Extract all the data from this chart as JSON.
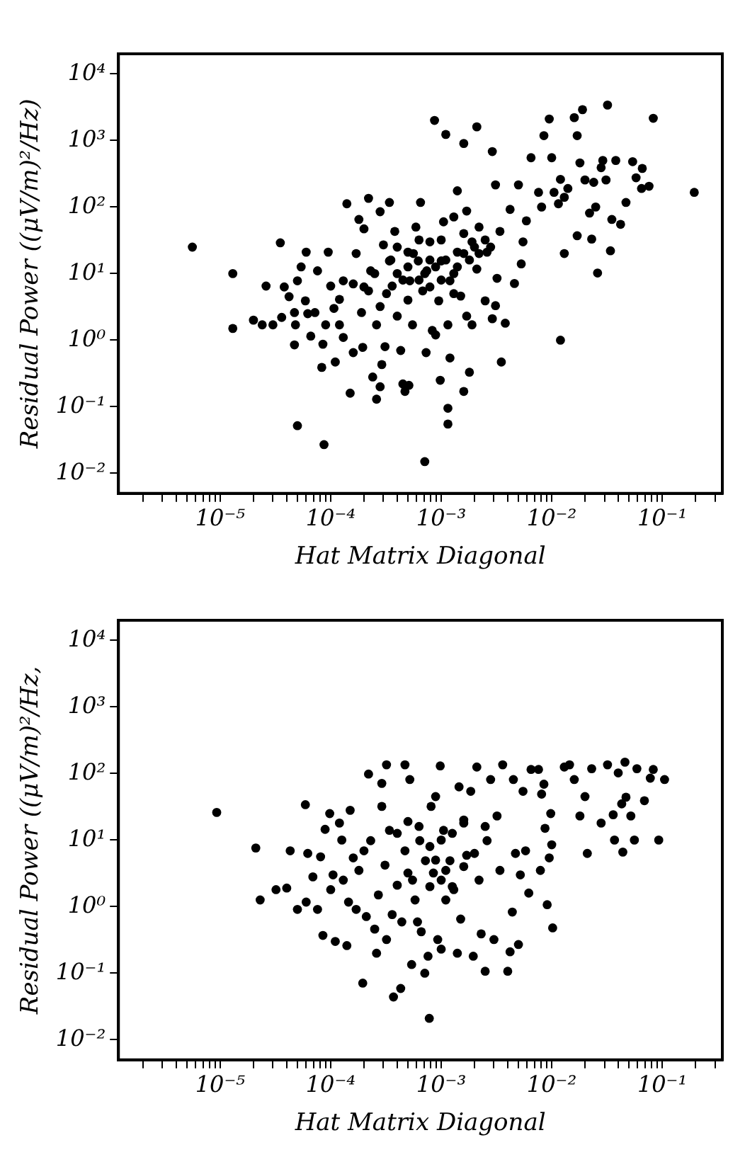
{
  "chart_data": [
    {
      "type": "scatter",
      "xlabel": "Hat Matrix Diagonal",
      "ylabel": "Residual Power ((μV/m)²/Hz)",
      "log": "xy",
      "grid": false,
      "legend": false,
      "marker": "circle",
      "xlim": [
        1.2e-06,
        0.35
      ],
      "ylim": [
        0.005,
        20000
      ],
      "xticks": [
        {
          "value": 2e-06,
          "label": null
        },
        {
          "value": 3e-06,
          "label": null
        },
        {
          "value": 4e-06,
          "label": null
        },
        {
          "value": 5e-06,
          "label": null
        },
        {
          "value": 6e-06,
          "label": null
        },
        {
          "value": 7e-06,
          "label": null
        },
        {
          "value": 8e-06,
          "label": null
        },
        {
          "value": 9e-06,
          "label": null
        },
        {
          "value": 1e-05,
          "label": "10⁻⁵"
        },
        {
          "value": 2e-05,
          "label": null
        },
        {
          "value": 3e-05,
          "label": null
        },
        {
          "value": 4e-05,
          "label": null
        },
        {
          "value": 5e-05,
          "label": null
        },
        {
          "value": 6e-05,
          "label": null
        },
        {
          "value": 7e-05,
          "label": null
        },
        {
          "value": 8e-05,
          "label": null
        },
        {
          "value": 9e-05,
          "label": null
        },
        {
          "value": 0.0001,
          "label": "10⁻⁴"
        },
        {
          "value": 0.0002,
          "label": null
        },
        {
          "value": 0.0003,
          "label": null
        },
        {
          "value": 0.0004,
          "label": null
        },
        {
          "value": 0.0005,
          "label": null
        },
        {
          "value": 0.0006,
          "label": null
        },
        {
          "value": 0.0007,
          "label": null
        },
        {
          "value": 0.0008,
          "label": null
        },
        {
          "value": 0.0009,
          "label": null
        },
        {
          "value": 0.001,
          "label": "10⁻³"
        },
        {
          "value": 0.002,
          "label": null
        },
        {
          "value": 0.003,
          "label": null
        },
        {
          "value": 0.004,
          "label": null
        },
        {
          "value": 0.005,
          "label": null
        },
        {
          "value": 0.006,
          "label": null
        },
        {
          "value": 0.007,
          "label": null
        },
        {
          "value": 0.008,
          "label": null
        },
        {
          "value": 0.009,
          "label": null
        },
        {
          "value": 0.01,
          "label": "10⁻²"
        },
        {
          "value": 0.02,
          "label": null
        },
        {
          "value": 0.03,
          "label": null
        },
        {
          "value": 0.04,
          "label": null
        },
        {
          "value": 0.05,
          "label": null
        },
        {
          "value": 0.06,
          "label": null
        },
        {
          "value": 0.07,
          "label": null
        },
        {
          "value": 0.08,
          "label": null
        },
        {
          "value": 0.09,
          "label": null
        },
        {
          "value": 0.1,
          "label": "10⁻¹"
        },
        {
          "value": 0.2,
          "label": null
        },
        {
          "value": 0.3,
          "label": null
        }
      ],
      "yticks": [
        {
          "value": 0.01,
          "label": "10⁻²"
        },
        {
          "value": 0.1,
          "label": "10⁻¹"
        },
        {
          "value": 1,
          "label": "10⁰"
        },
        {
          "value": 10,
          "label": "10¹"
        },
        {
          "value": 100,
          "label": "10²"
        },
        {
          "value": 1000,
          "label": "10³"
        },
        {
          "value": 10000,
          "label": "10⁴"
        }
      ],
      "series": [
        {
          "color": "#000000",
          "x": [
            5.6e-06,
            1.3e-05,
            1.3e-05,
            2e-05,
            2.4e-05,
            2.6e-05,
            3e-05,
            3.5e-05,
            3.6e-05,
            3.8e-05,
            4.2e-05,
            4.7e-05,
            4.8e-05,
            4.7e-05,
            5e-05,
            5e-05,
            5.4e-05,
            6e-05,
            5.9e-05,
            6.2e-05,
            6.6e-05,
            7.2e-05,
            7.6e-05,
            8.3e-05,
            8.7e-05,
            8.5e-05,
            9e-05,
            9.5e-05,
            0.0001,
            0.000107,
            0.00011,
            0.00012,
            0.00012,
            0.00013,
            0.00014,
            0.00013,
            0.00015,
            0.00016,
            0.00016,
            0.00017,
            0.00018,
            0.00019,
            0.000195,
            0.0002,
            0.00022,
            0.00022,
            0.00023,
            0.00024,
            0.00026,
            0.00026,
            0.00028,
            0.00028,
            0.00029,
            0.0003,
            0.00031,
            0.00034,
            0.00034,
            0.00036,
            0.00038,
            0.0004,
            0.00043,
            0.00045,
            0.00047,
            0.0005,
            0.00051,
            0.00052,
            0.00055,
            0.00059,
            0.00062,
            0.00065,
            0.00068,
            0.00071,
            0.00073,
            0.00074,
            0.00079,
            0.00083,
            0.00087,
            0.00089,
            0.00095,
            0.00098,
            0.001,
            0.00105,
            0.0011,
            0.00115,
            0.00115,
            0.00115,
            0.0012,
            0.0012,
            0.0013,
            0.0014,
            0.0014,
            0.0015,
            0.0016,
            0.0016,
            0.0017,
            0.0017,
            0.0018,
            0.0019,
            0.0019,
            0.0021,
            0.0021,
            0.0022,
            0.0025,
            0.0026,
            0.0029,
            0.0029,
            0.0031,
            0.0031,
            0.0032,
            0.0034,
            0.0035,
            0.0038,
            0.0042,
            0.0046,
            0.005,
            0.0053,
            0.0055,
            0.0059,
            0.0065,
            0.0076,
            0.0081,
            0.0085,
            0.0095,
            0.01,
            0.0105,
            0.0115,
            0.012,
            0.012,
            0.013,
            0.013,
            0.014,
            0.016,
            0.017,
            0.017,
            0.018,
            0.019,
            0.02,
            0.022,
            0.023,
            0.024,
            0.025,
            0.026,
            0.028,
            0.029,
            0.031,
            0.032,
            0.034,
            0.035,
            0.038,
            0.042,
            0.047,
            0.054,
            0.058,
            0.065,
            0.066,
            0.076,
            0.083,
            0.195,
            0.00035,
            0.0004,
            0.00045,
            0.0005,
            0.00056,
            0.00063,
            0.00071,
            0.00079,
            0.00089,
            0.001,
            0.0011,
            0.0013,
            0.0014,
            0.0016,
            0.0018,
            0.002,
            0.0022,
            0.0025,
            0.0028,
            0.00032,
            0.0005,
            0.00079,
            0.0013,
            0.00063,
            0.001,
            0.0016,
            0.0004,
            0.00025,
            0.0002,
            0.00028
          ],
          "values": [
            25,
            10,
            1.5,
            2,
            1.7,
            6.5,
            1.7,
            29,
            2.2,
            6.3,
            4.5,
            2.6,
            1.7,
            0.85,
            0.052,
            7.8,
            12.6,
            21,
            3.9,
            2.5,
            1.15,
            2.6,
            11,
            0.39,
            0.027,
            0.87,
            1.7,
            21,
            6.5,
            3,
            0.47,
            1.7,
            4.1,
            7.8,
            112,
            1.1,
            0.16,
            0.65,
            7,
            20,
            65,
            2.6,
            0.78,
            47,
            135,
            5.5,
            11,
            0.28,
            0.13,
            1.7,
            85,
            0.2,
            0.43,
            27,
            0.8,
            117,
            15.5,
            6.5,
            43,
            2.3,
            0.7,
            0.22,
            0.17,
            21,
            0.21,
            7.8,
            1.7,
            50,
            15.5,
            117,
            5.5,
            0.015,
            0.65,
            11,
            30,
            1.4,
            2000,
            1.2,
            3.9,
            0.25,
            15.5,
            60,
            1230,
            0.095,
            0.055,
            1.7,
            0.54,
            7.8,
            71,
            175,
            21,
            4.6,
            900,
            0.17,
            2.3,
            87,
            0.33,
            1.7,
            30,
            1600,
            11.7,
            50,
            3.9,
            21,
            680,
            2.1,
            215,
            3.3,
            8.5,
            43,
            0.47,
            1.8,
            92,
            7.1,
            215,
            14,
            30,
            62,
            550,
            166,
            100,
            1180,
            2100,
            550,
            166,
            112,
            260,
            1,
            20,
            140,
            190,
            2200,
            1180,
            37,
            460,
            2900,
            255,
            81,
            33,
            235,
            100,
            10.2,
            390,
            500,
            255,
            3400,
            22,
            65,
            500,
            55,
            117,
            480,
            275,
            190,
            380,
            205,
            2150,
            166,
            16,
            10,
            8,
            12.6,
            20,
            8,
            10,
            16,
            12.6,
            8,
            16,
            10,
            12.6,
            20,
            16,
            25,
            20,
            32,
            25,
            5,
            4,
            6.3,
            5,
            32,
            32,
            40,
            25,
            10,
            6.3,
            3.2
          ]
        }
      ]
    },
    {
      "type": "scatter",
      "xlabel": "Hat Matrix Diagonal",
      "ylabel": "Residual Power ((μV/m)²/Hz,",
      "log": "xy",
      "grid": false,
      "legend": false,
      "marker": "circle",
      "xlim": [
        1.2e-06,
        0.35
      ],
      "ylim": [
        0.005,
        20000
      ],
      "xticks": [
        {
          "value": 2e-06,
          "label": null
        },
        {
          "value": 3e-06,
          "label": null
        },
        {
          "value": 4e-06,
          "label": null
        },
        {
          "value": 5e-06,
          "label": null
        },
        {
          "value": 6e-06,
          "label": null
        },
        {
          "value": 7e-06,
          "label": null
        },
        {
          "value": 8e-06,
          "label": null
        },
        {
          "value": 9e-06,
          "label": null
        },
        {
          "value": 1e-05,
          "label": "10⁻⁵"
        },
        {
          "value": 2e-05,
          "label": null
        },
        {
          "value": 3e-05,
          "label": null
        },
        {
          "value": 4e-05,
          "label": null
        },
        {
          "value": 5e-05,
          "label": null
        },
        {
          "value": 6e-05,
          "label": null
        },
        {
          "value": 7e-05,
          "label": null
        },
        {
          "value": 8e-05,
          "label": null
        },
        {
          "value": 9e-05,
          "label": null
        },
        {
          "value": 0.0001,
          "label": "10⁻⁴"
        },
        {
          "value": 0.0002,
          "label": null
        },
        {
          "value": 0.0003,
          "label": null
        },
        {
          "value": 0.0004,
          "label": null
        },
        {
          "value": 0.0005,
          "label": null
        },
        {
          "value": 0.0006,
          "label": null
        },
        {
          "value": 0.0007,
          "label": null
        },
        {
          "value": 0.0008,
          "label": null
        },
        {
          "value": 0.0009,
          "label": null
        },
        {
          "value": 0.001,
          "label": "10⁻³"
        },
        {
          "value": 0.002,
          "label": null
        },
        {
          "value": 0.003,
          "label": null
        },
        {
          "value": 0.004,
          "label": null
        },
        {
          "value": 0.005,
          "label": null
        },
        {
          "value": 0.006,
          "label": null
        },
        {
          "value": 0.007,
          "label": null
        },
        {
          "value": 0.008,
          "label": null
        },
        {
          "value": 0.009,
          "label": null
        },
        {
          "value": 0.01,
          "label": "10⁻²"
        },
        {
          "value": 0.02,
          "label": null
        },
        {
          "value": 0.03,
          "label": null
        },
        {
          "value": 0.04,
          "label": null
        },
        {
          "value": 0.05,
          "label": null
        },
        {
          "value": 0.06,
          "label": null
        },
        {
          "value": 0.07,
          "label": null
        },
        {
          "value": 0.08,
          "label": null
        },
        {
          "value": 0.09,
          "label": null
        },
        {
          "value": 0.1,
          "label": "10⁻¹"
        },
        {
          "value": 0.2,
          "label": null
        },
        {
          "value": 0.3,
          "label": null
        }
      ],
      "yticks": [
        {
          "value": 0.01,
          "label": "10⁻²"
        },
        {
          "value": 0.1,
          "label": "10⁻¹"
        },
        {
          "value": 1,
          "label": "10⁰"
        },
        {
          "value": 10,
          "label": "10¹"
        },
        {
          "value": 100,
          "label": "10²"
        },
        {
          "value": 1000,
          "label": "10³"
        },
        {
          "value": 10000,
          "label": "10⁴"
        }
      ],
      "series": [
        {
          "color": "#000000",
          "x": [
            9.3e-06,
            2.1e-05,
            2.3e-05,
            3.2e-05,
            4e-05,
            4.3e-05,
            5e-05,
            5.9e-05,
            6e-05,
            6.2e-05,
            6.9e-05,
            7.6e-05,
            8.1e-05,
            8.5e-05,
            8.9e-05,
            9.8e-05,
            0.0001,
            0.000105,
            0.00011,
            0.00012,
            0.000126,
            0.00013,
            0.00014,
            0.000145,
            0.00015,
            0.00016,
            0.00017,
            0.00018,
            0.000195,
            0.0002,
            0.00021,
            0.00022,
            0.00023,
            0.00025,
            0.00026,
            0.00027,
            0.00029,
            0.00029,
            0.00031,
            0.00032,
            0.00032,
            0.00034,
            0.00036,
            0.00037,
            0.0004,
            0.00043,
            0.00044,
            0.00047,
            0.00047,
            0.0005,
            0.00052,
            0.00054,
            0.00055,
            0.00058,
            0.00061,
            0.00064,
            0.00066,
            0.00071,
            0.00072,
            0.00076,
            0.00078,
            0.00081,
            0.00085,
            0.00089,
            0.00093,
            0.00098,
            0.001,
            0.00105,
            0.0011,
            0.0012,
            0.0013,
            0.0014,
            0.00145,
            0.0015,
            0.0016,
            0.0017,
            0.00185,
            0.00195,
            0.0021,
            0.0022,
            0.0023,
            0.0025,
            0.0026,
            0.0028,
            0.003,
            0.0032,
            0.0034,
            0.0036,
            0.004,
            0.0042,
            0.0044,
            0.0045,
            0.0047,
            0.005,
            0.0052,
            0.0055,
            0.0058,
            0.0062,
            0.0065,
            0.0076,
            0.0079,
            0.0081,
            0.0085,
            0.0087,
            0.0091,
            0.0095,
            0.0098,
            0.01,
            0.0102,
            0.013,
            0.0145,
            0.016,
            0.018,
            0.02,
            0.021,
            0.023,
            0.028,
            0.032,
            0.036,
            0.037,
            0.04,
            0.043,
            0.044,
            0.046,
            0.047,
            0.052,
            0.056,
            0.059,
            0.069,
            0.083,
            0.078,
            0.093,
            0.105,
            0.00063,
            0.00079,
            0.001,
            0.00126,
            0.0016,
            0.002,
            0.0005,
            0.001,
            0.00126,
            0.00079,
            0.0016,
            0.0025,
            0.0004,
            0.0011,
            0.00089
          ],
          "values": [
            26,
            7.6,
            1.26,
            1.8,
            1.9,
            6.9,
            0.91,
            34,
            1.17,
            6.3,
            2.8,
            0.91,
            5.6,
            0.37,
            14.5,
            25,
            1.8,
            3,
            0.3,
            18,
            10,
            2.5,
            0.26,
            1.17,
            28,
            5.4,
            0.91,
            3.5,
            0.071,
            6.9,
            0.71,
            98,
            9.8,
            0.46,
            0.2,
            1.5,
            71,
            32,
            4.2,
            135,
            0.32,
            14,
            0.76,
            0.044,
            2.1,
            0.059,
            0.59,
            135,
            6.9,
            19,
            81,
            0.135,
            2.5,
            1.26,
            0.59,
            9.8,
            0.42,
            0.1,
            4.9,
            0.18,
            0.021,
            32,
            3.2,
            45,
            0.32,
            130,
            0.23,
            14,
            1.26,
            4.9,
            1.8,
            0.2,
            63,
            0.65,
            18,
            5.9,
            54,
            0.18,
            125,
            2.5,
            0.39,
            0.107,
            9.8,
            81,
            0.32,
            23,
            3.5,
            135,
            0.107,
            0.21,
            0.83,
            81,
            6.3,
            0.27,
            3,
            54,
            6.9,
            1.6,
            115,
            115,
            3.5,
            49,
            69,
            15,
            1.07,
            5.4,
            25,
            8.5,
            0.48,
            125,
            135,
            81,
            23,
            45,
            6.3,
            118,
            18,
            135,
            24,
            10,
            102,
            35,
            6.6,
            148,
            44,
            23,
            10,
            118,
            39,
            115,
            85,
            10,
            81,
            16,
            8,
            10,
            12.6,
            4,
            6.3,
            3.2,
            2.5,
            2,
            2,
            20,
            16,
            12.6,
            3.5,
            5
          ]
        }
      ]
    }
  ]
}
